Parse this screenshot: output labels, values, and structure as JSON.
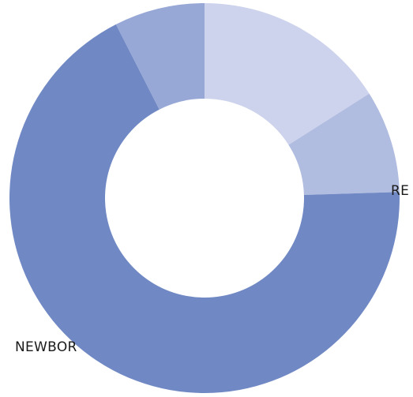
{
  "chart_data": {
    "type": "pie",
    "variant": "donut",
    "slices": [
      {
        "label": "",
        "value": 0.16,
        "color": "#CDD3EC"
      },
      {
        "label": "",
        "value": 0.085,
        "color": "#B0BCE0"
      },
      {
        "label": "",
        "value": 0.68,
        "color": "#7089C4"
      },
      {
        "label": "",
        "value": 0.075,
        "color": "#97A8D6"
      }
    ],
    "visible_labels": {
      "newborn": "NEWBOR",
      "care": "RE"
    }
  }
}
